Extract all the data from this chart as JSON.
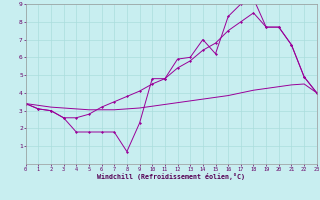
{
  "xlabel": "Windchill (Refroidissement éolien,°C)",
  "bg_color": "#c8eef0",
  "grid_color": "#aadddd",
  "line_color": "#990099",
  "xmin": 0,
  "xmax": 23,
  "ymin": 0,
  "ymax": 9,
  "x_ticks": [
    0,
    1,
    2,
    3,
    4,
    5,
    6,
    7,
    8,
    9,
    10,
    11,
    12,
    13,
    14,
    15,
    16,
    17,
    18,
    19,
    20,
    21,
    22,
    23
  ],
  "y_ticks": [
    1,
    2,
    3,
    4,
    5,
    6,
    7,
    8,
    9
  ],
  "lineA_x": [
    0,
    1,
    2,
    3,
    4,
    5,
    6,
    7,
    8,
    9,
    10,
    11,
    12,
    13,
    14,
    15,
    16,
    17,
    18,
    19,
    20,
    21,
    22,
    23
  ],
  "lineA_y": [
    3.4,
    3.1,
    3.0,
    2.6,
    1.8,
    1.8,
    1.8,
    1.8,
    0.7,
    2.3,
    4.8,
    4.8,
    5.9,
    6.0,
    7.0,
    6.2,
    8.3,
    9.0,
    9.3,
    7.7,
    7.7,
    6.7,
    4.9,
    4.0
  ],
  "lineB_x": [
    0,
    1,
    2,
    3,
    4,
    5,
    6,
    7,
    8,
    9,
    10,
    11,
    12,
    13,
    14,
    15,
    16,
    17,
    18,
    19,
    20,
    21,
    22,
    23
  ],
  "lineB_y": [
    3.4,
    3.1,
    3.0,
    2.6,
    2.6,
    2.8,
    3.2,
    3.5,
    3.8,
    4.1,
    4.5,
    4.8,
    5.4,
    5.8,
    6.4,
    6.8,
    7.5,
    8.0,
    8.5,
    7.7,
    7.7,
    6.7,
    4.9,
    4.0
  ],
  "lineC_x": [
    0,
    1,
    2,
    3,
    4,
    5,
    6,
    7,
    8,
    9,
    10,
    11,
    12,
    13,
    14,
    15,
    16,
    17,
    18,
    19,
    20,
    21,
    22,
    23
  ],
  "lineC_y": [
    3.4,
    3.3,
    3.2,
    3.15,
    3.1,
    3.05,
    3.05,
    3.05,
    3.1,
    3.15,
    3.25,
    3.35,
    3.45,
    3.55,
    3.65,
    3.75,
    3.85,
    4.0,
    4.15,
    4.25,
    4.35,
    4.45,
    4.5,
    4.0
  ]
}
